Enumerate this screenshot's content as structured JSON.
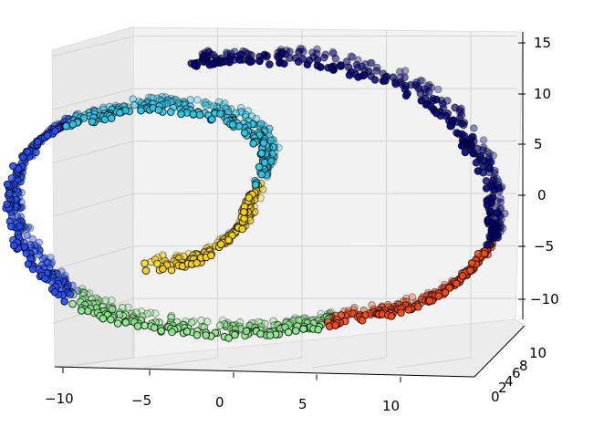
{
  "chart_data": {
    "type": "scatter",
    "projection": "3d",
    "title": "",
    "xlabel": "",
    "ylabel": "",
    "zlabel": "",
    "grid": true,
    "legend": "none",
    "xlim": [
      -11,
      14
    ],
    "ylim": [
      0,
      11
    ],
    "zlim": [
      -13,
      16
    ],
    "x_ticks": [
      "−10",
      "−5",
      "0",
      "5",
      "10"
    ],
    "y_ticks": [
      "0",
      "2",
      "4",
      "6",
      "8",
      "10"
    ],
    "z_ticks": [
      "−10",
      "−5",
      "0",
      "5",
      "10",
      "15"
    ],
    "color_by": "roll position (jet colormap)",
    "point_edge_color": "#000000",
    "n_points_approx": 1500,
    "series": [
      {
        "color": "#ffd700",
        "points": [
          [
            -3.9,
            5,
            -6.9
          ],
          [
            -2.1,
            5,
            -6.8
          ],
          [
            -0.8,
            5,
            -5.7
          ],
          [
            0.1,
            5,
            -4.3
          ],
          [
            0.9,
            5,
            -2.8
          ],
          [
            1.1,
            5,
            -1.1
          ],
          [
            1.5,
            5,
            1
          ]
        ]
      },
      {
        "color": "#22ccee",
        "points": [
          [
            1.5,
            5,
            1
          ],
          [
            2,
            5,
            3
          ],
          [
            1.9,
            5,
            5
          ],
          [
            1.2,
            5,
            6.5
          ],
          [
            0,
            5,
            7.8
          ],
          [
            -1.6,
            5,
            8.3
          ],
          [
            -3.2,
            5,
            8.7
          ],
          [
            -4.7,
            5,
            8.4
          ],
          [
            -6,
            5,
            7.8
          ],
          [
            -7.6,
            5,
            7.2
          ]
        ]
      },
      {
        "color": "#1f4fff",
        "points": [
          [
            -7.6,
            5,
            7.2
          ],
          [
            -8.8,
            5,
            5.8
          ],
          [
            -9.7,
            5,
            4
          ],
          [
            -10.2,
            5,
            2
          ],
          [
            -10.5,
            5,
            0
          ],
          [
            -10.4,
            5,
            -2
          ],
          [
            -10.1,
            5,
            -4.2
          ],
          [
            -9.3,
            5,
            -6.5
          ],
          [
            -8.4,
            5,
            -8.5
          ],
          [
            -7.6,
            5,
            -10
          ]
        ]
      },
      {
        "color": "#90ee90",
        "points": [
          [
            -7.6,
            5,
            -10
          ],
          [
            -6.4,
            5,
            -11.3
          ],
          [
            -4.8,
            5,
            -12.2
          ],
          [
            -3,
            5,
            -12.9
          ],
          [
            -1,
            5,
            -13.3
          ],
          [
            0.8,
            5,
            -13.5
          ],
          [
            2.5,
            5,
            -13.2
          ],
          [
            3.9,
            5,
            -12.8
          ],
          [
            5,
            5,
            -12.3
          ]
        ]
      },
      {
        "color": "#ff4a0a",
        "points": [
          [
            5,
            5,
            -12.3
          ],
          [
            6.6,
            5,
            -11.9
          ],
          [
            8,
            5,
            -11.3
          ],
          [
            9.2,
            5,
            -10.8
          ],
          [
            10.3,
            5,
            -9.8
          ],
          [
            11.3,
            5,
            -8.5
          ],
          [
            12,
            5,
            -7.2
          ],
          [
            12.8,
            5,
            -5.2
          ]
        ]
      },
      {
        "color": "#000080",
        "points": [
          [
            12.8,
            5,
            -5.2
          ],
          [
            13,
            5,
            -3.5
          ],
          [
            13,
            5,
            -1.5
          ],
          [
            12.9,
            5,
            0.8
          ],
          [
            12.4,
            5,
            3.2
          ],
          [
            11.8,
            5,
            5.5
          ],
          [
            11,
            5,
            7.5
          ],
          [
            9.8,
            5,
            9.5
          ],
          [
            8.2,
            5,
            11.1
          ],
          [
            6.3,
            5,
            12.2
          ],
          [
            4.3,
            5,
            13.2
          ],
          [
            2.4,
            5,
            13.4
          ],
          [
            0.7,
            5,
            13.3
          ],
          [
            -0.8,
            5,
            13.2
          ],
          [
            -1.5,
            5,
            13.1
          ]
        ]
      }
    ]
  }
}
